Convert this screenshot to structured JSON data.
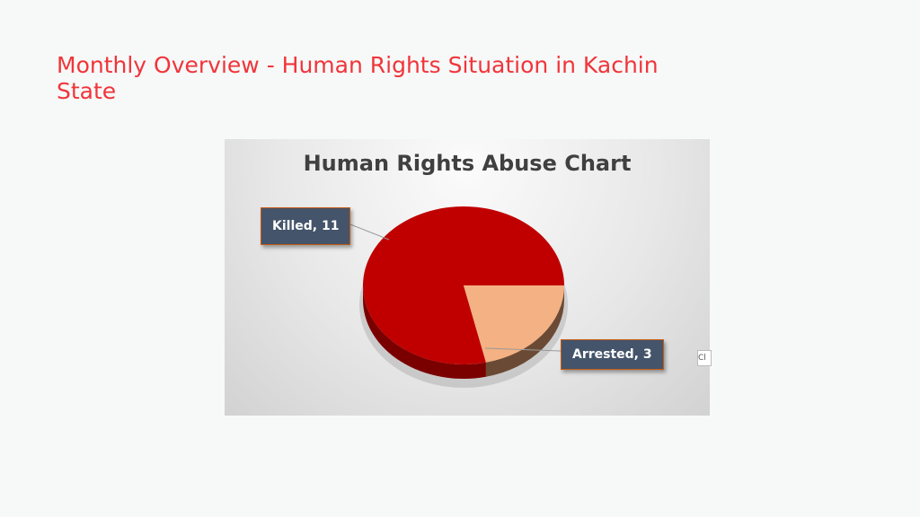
{
  "slide": {
    "title": "Monthly Overview - Human Rights Situation in Kachin State"
  },
  "chart_data": {
    "type": "pie",
    "title": "Human Rights Abuse Chart",
    "categories": [
      "Killed",
      "Arrested"
    ],
    "values": [
      11,
      3
    ],
    "labels": [
      "Killed, 11",
      "Arrested, 3"
    ],
    "colors": [
      "#c00000",
      "#f4b183"
    ],
    "style": "3d"
  },
  "handle_text": "Cl"
}
